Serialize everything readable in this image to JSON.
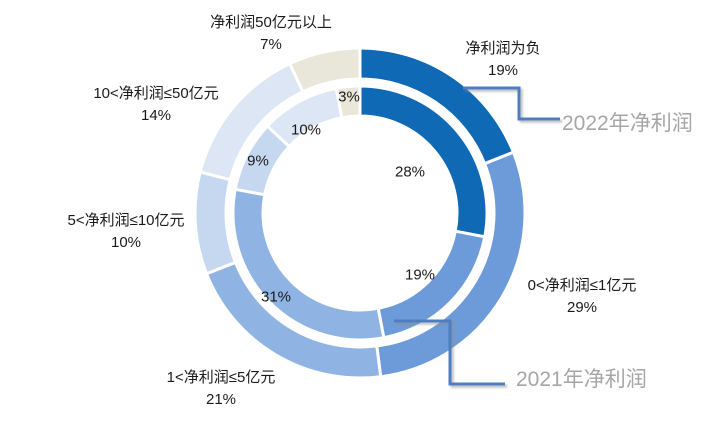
{
  "chart_data": {
    "type": "pie",
    "subtype": "nested-donut",
    "title": "",
    "unit": "%",
    "categories": [
      "净利润为负",
      "0<净利润≤1亿元",
      "1<净利润≤5亿元",
      "5<净利润≤10亿元",
      "10<净利润≤50亿元",
      "净利润50亿元以上"
    ],
    "series": [
      {
        "name": "2022年净利润",
        "ring": "outer",
        "values": [
          19,
          29,
          21,
          10,
          14,
          7
        ]
      },
      {
        "name": "2021年净利润",
        "ring": "inner",
        "values": [
          28,
          19,
          31,
          9,
          10,
          3
        ]
      }
    ],
    "colors": [
      "#0F69B4",
      "#6D9BD9",
      "#8FB4E3",
      "#C6D8EF",
      "#DCE6F4",
      "#E9E6DA"
    ],
    "start_angle_deg": 0,
    "direction": "clockwise",
    "legend_position": "none",
    "grid": false
  },
  "outer_labels": [
    {
      "name": "净利润为负",
      "value": "19%"
    },
    {
      "name": "0<净利润≤1亿元",
      "value": "29%"
    },
    {
      "name": "1<净利润≤5亿元",
      "value": "21%"
    },
    {
      "name": "5<净利润≤10亿元",
      "value": "10%"
    },
    {
      "name": "10<净利润≤50亿元",
      "value": "14%"
    },
    {
      "name": "净利润50亿元以上",
      "value": "7%"
    }
  ],
  "inner_labels": [
    "28%",
    "19%",
    "31%",
    "9%",
    "10%",
    "3%"
  ],
  "callouts": [
    {
      "label": "2022年净利润"
    },
    {
      "label": "2021年净利润"
    }
  ],
  "style": {
    "callout_line_color": "#4E7EC1",
    "callout_text_color": "#A6A6A6",
    "label_text_color": "#1A1A1A",
    "background": "#FFFFFF"
  }
}
